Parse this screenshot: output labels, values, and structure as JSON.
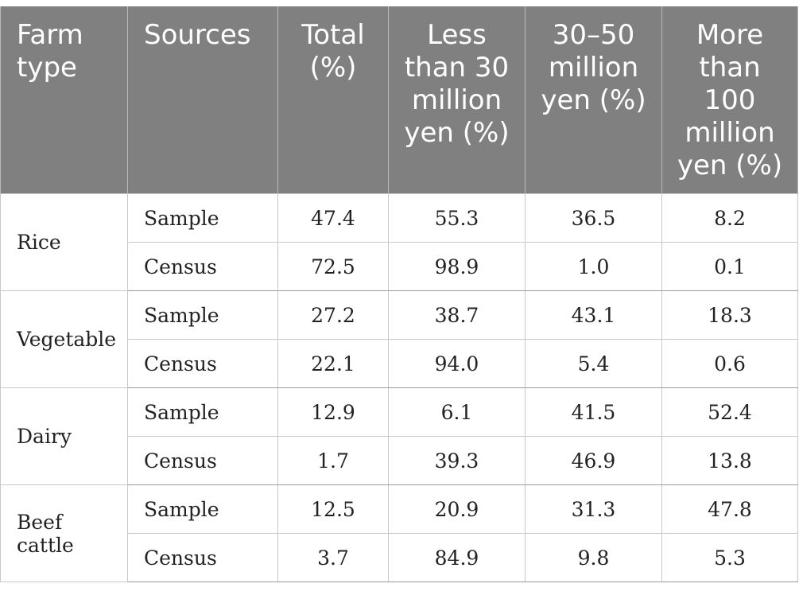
{
  "table": {
    "headers": [
      "Farm type",
      "Sources",
      "Total (%)",
      "Less than 30 million yen (%)",
      "30–50 million yen (%)",
      "More than 100 million yen (%)"
    ],
    "groups": [
      {
        "type": "Rice",
        "rows": [
          {
            "source": "Sample",
            "values": [
              "47.4",
              "55.3",
              "36.5",
              "8.2"
            ]
          },
          {
            "source": "Census",
            "values": [
              "72.5",
              "98.9",
              "1.0",
              "0.1"
            ]
          }
        ]
      },
      {
        "type": "Vegetable",
        "rows": [
          {
            "source": "Sample",
            "values": [
              "27.2",
              "38.7",
              "43.1",
              "18.3"
            ]
          },
          {
            "source": "Census",
            "values": [
              "22.1",
              "94.0",
              "5.4",
              "0.6"
            ]
          }
        ]
      },
      {
        "type": "Dairy",
        "rows": [
          {
            "source": "Sample",
            "values": [
              "12.9",
              "6.1",
              "41.5",
              "52.4"
            ]
          },
          {
            "source": "Census",
            "values": [
              "1.7",
              "39.3",
              "46.9",
              "13.8"
            ]
          }
        ]
      },
      {
        "type": "Beef cattle",
        "rows": [
          {
            "source": "Sample",
            "values": [
              "12.5",
              "20.9",
              "31.3",
              "47.8"
            ]
          },
          {
            "source": "Census",
            "values": [
              "3.7",
              "84.9",
              "9.8",
              "5.3"
            ]
          }
        ]
      }
    ]
  }
}
